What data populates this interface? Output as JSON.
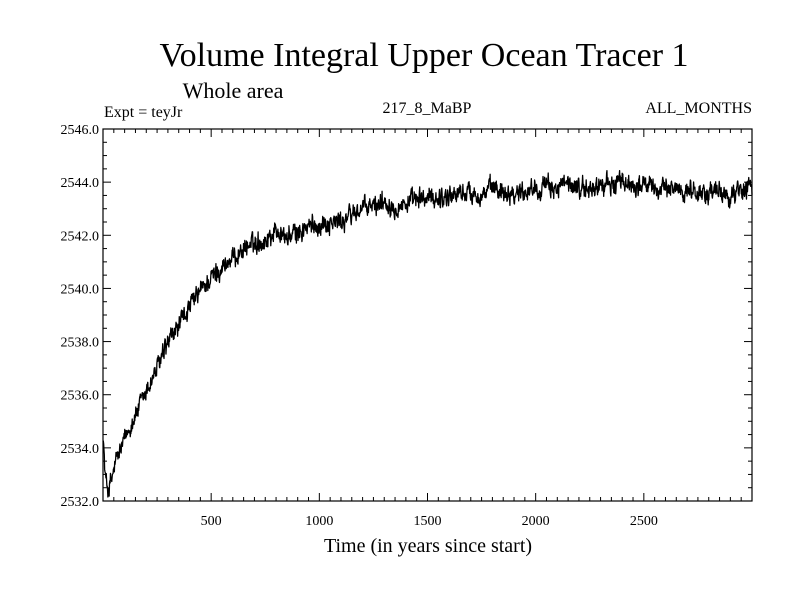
{
  "chart_data": {
    "type": "line",
    "title": "Volume Integral Upper Ocean Tracer 1",
    "subtitle": "Whole area",
    "expt_label": "Expt = teyJr",
    "run_label": "217_8_MaBP",
    "months_label": "ALL_MONTHS",
    "xlabel": "Time (in years since start)",
    "ylabel": "",
    "xlim": [
      0,
      3000
    ],
    "ylim": [
      2532.0,
      2546.0
    ],
    "x_ticks": [
      500,
      1000,
      1500,
      2000,
      2500
    ],
    "x_tick_labels": [
      "500",
      "1000",
      "1500",
      "2000",
      "2500"
    ],
    "y_ticks": [
      2532.0,
      2534.0,
      2536.0,
      2538.0,
      2540.0,
      2542.0,
      2544.0,
      2546.0
    ],
    "y_tick_labels": [
      "2532.0",
      "2534.0",
      "2536.0",
      "2538.0",
      "2540.0",
      "2542.0",
      "2544.0",
      "2546.0"
    ],
    "series": [
      {
        "name": "Tracer 1",
        "color": "#000000",
        "x": [
          0,
          10,
          25,
          40,
          60,
          80,
          100,
          130,
          160,
          200,
          250,
          300,
          350,
          400,
          450,
          500,
          550,
          600,
          650,
          700,
          750,
          800,
          850,
          900,
          950,
          1000,
          1050,
          1100,
          1150,
          1200,
          1250,
          1300,
          1350,
          1400,
          1450,
          1500,
          1550,
          1600,
          1650,
          1700,
          1750,
          1800,
          1850,
          1900,
          1950,
          2000,
          2050,
          2100,
          2150,
          2200,
          2250,
          2300,
          2350,
          2400,
          2450,
          2500,
          2550,
          2600,
          2650,
          2700,
          2750,
          2800,
          2850,
          2900,
          2950,
          3000
        ],
        "values": [
          2534.6,
          2532.9,
          2532.4,
          2532.8,
          2533.5,
          2533.9,
          2534.3,
          2534.9,
          2535.4,
          2536.1,
          2537.0,
          2537.9,
          2538.6,
          2539.3,
          2539.9,
          2540.4,
          2540.8,
          2541.1,
          2541.5,
          2541.7,
          2541.8,
          2542.2,
          2541.9,
          2542.1,
          2542.3,
          2542.4,
          2542.5,
          2542.5,
          2542.8,
          2543.0,
          2543.1,
          2543.3,
          2543.1,
          2543.2,
          2543.3,
          2543.4,
          2543.4,
          2543.5,
          2543.6,
          2543.6,
          2543.5,
          2543.8,
          2543.7,
          2543.6,
          2543.7,
          2543.8,
          2543.8,
          2543.8,
          2543.9,
          2543.8,
          2543.7,
          2543.9,
          2543.9,
          2544.0,
          2543.9,
          2543.9,
          2543.8,
          2543.7,
          2543.8,
          2543.7,
          2543.6,
          2543.6,
          2543.6,
          2543.5,
          2543.7,
          2543.9
        ]
      }
    ]
  }
}
